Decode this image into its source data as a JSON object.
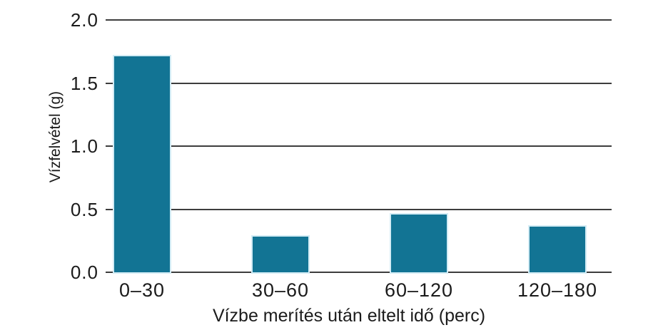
{
  "chart_data": {
    "type": "bar",
    "categories": [
      "0–30",
      "30–60",
      "60–120",
      "120–180"
    ],
    "values": [
      1.71,
      0.28,
      0.46,
      0.36
    ],
    "title": "",
    "xlabel": "Vízbe merítés után eltelt idő (perc)",
    "ylabel": "Vízfelvétel (g)",
    "ylim": [
      0,
      2.0
    ],
    "yticks": [
      0.0,
      0.5,
      1.0,
      1.5,
      2.0
    ],
    "ytick_labels": [
      "0.0",
      "0.5",
      "1.0",
      "1.5",
      "2.0"
    ],
    "grid": true,
    "legend": false,
    "bar_color": "#127494",
    "bar_edge_color": "#d3ecf5",
    "gridline_color": "#3d3d3d",
    "text_color": "#1b1b1b"
  }
}
